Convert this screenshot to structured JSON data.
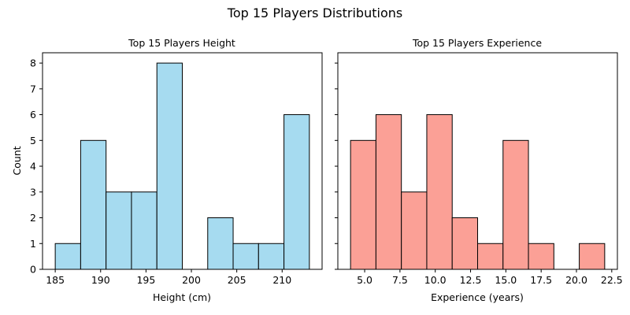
{
  "suptitle": "Top 15 Players Distributions",
  "chart_data": [
    {
      "type": "bar",
      "title": "Top 15 Players Height",
      "xlabel": "Height (cm)",
      "ylabel": "Count",
      "xlim": [
        183.6,
        214.4
      ],
      "ylim": [
        0,
        8.4
      ],
      "xticks": [
        "185",
        "190",
        "195",
        "200",
        "205",
        "210"
      ],
      "yticks": [
        "0",
        "1",
        "2",
        "3",
        "4",
        "5",
        "6",
        "7",
        "8"
      ],
      "bin_edges": [
        185,
        187.8,
        190.6,
        193.4,
        196.2,
        199,
        201.8,
        204.6,
        207.4,
        210.2,
        213
      ],
      "values": [
        1,
        5,
        3,
        3,
        8,
        0,
        2,
        1,
        1,
        6
      ],
      "color": "#a6dbf0",
      "edge_color": "#000000",
      "grid": false
    },
    {
      "type": "bar",
      "title": "Top 15 Players Experience",
      "xlabel": "Experience (years)",
      "ylabel": "",
      "xlim": [
        3.1,
        22.9
      ],
      "ylim": [
        0,
        8.4
      ],
      "xticks": [
        "5.0",
        "7.5",
        "10.0",
        "12.5",
        "15.0",
        "17.5",
        "20.0",
        "22.5"
      ],
      "yticks": [
        "0",
        "1",
        "2",
        "3",
        "4",
        "5",
        "6",
        "7",
        "8"
      ],
      "bin_edges": [
        4,
        5.8,
        7.6,
        9.4,
        11.2,
        13,
        14.8,
        16.6,
        18.4,
        20.2,
        22
      ],
      "values": [
        5,
        6,
        3,
        6,
        2,
        1,
        5,
        1,
        0,
        1
      ],
      "color": "#fba096",
      "edge_color": "#000000",
      "grid": false
    }
  ]
}
